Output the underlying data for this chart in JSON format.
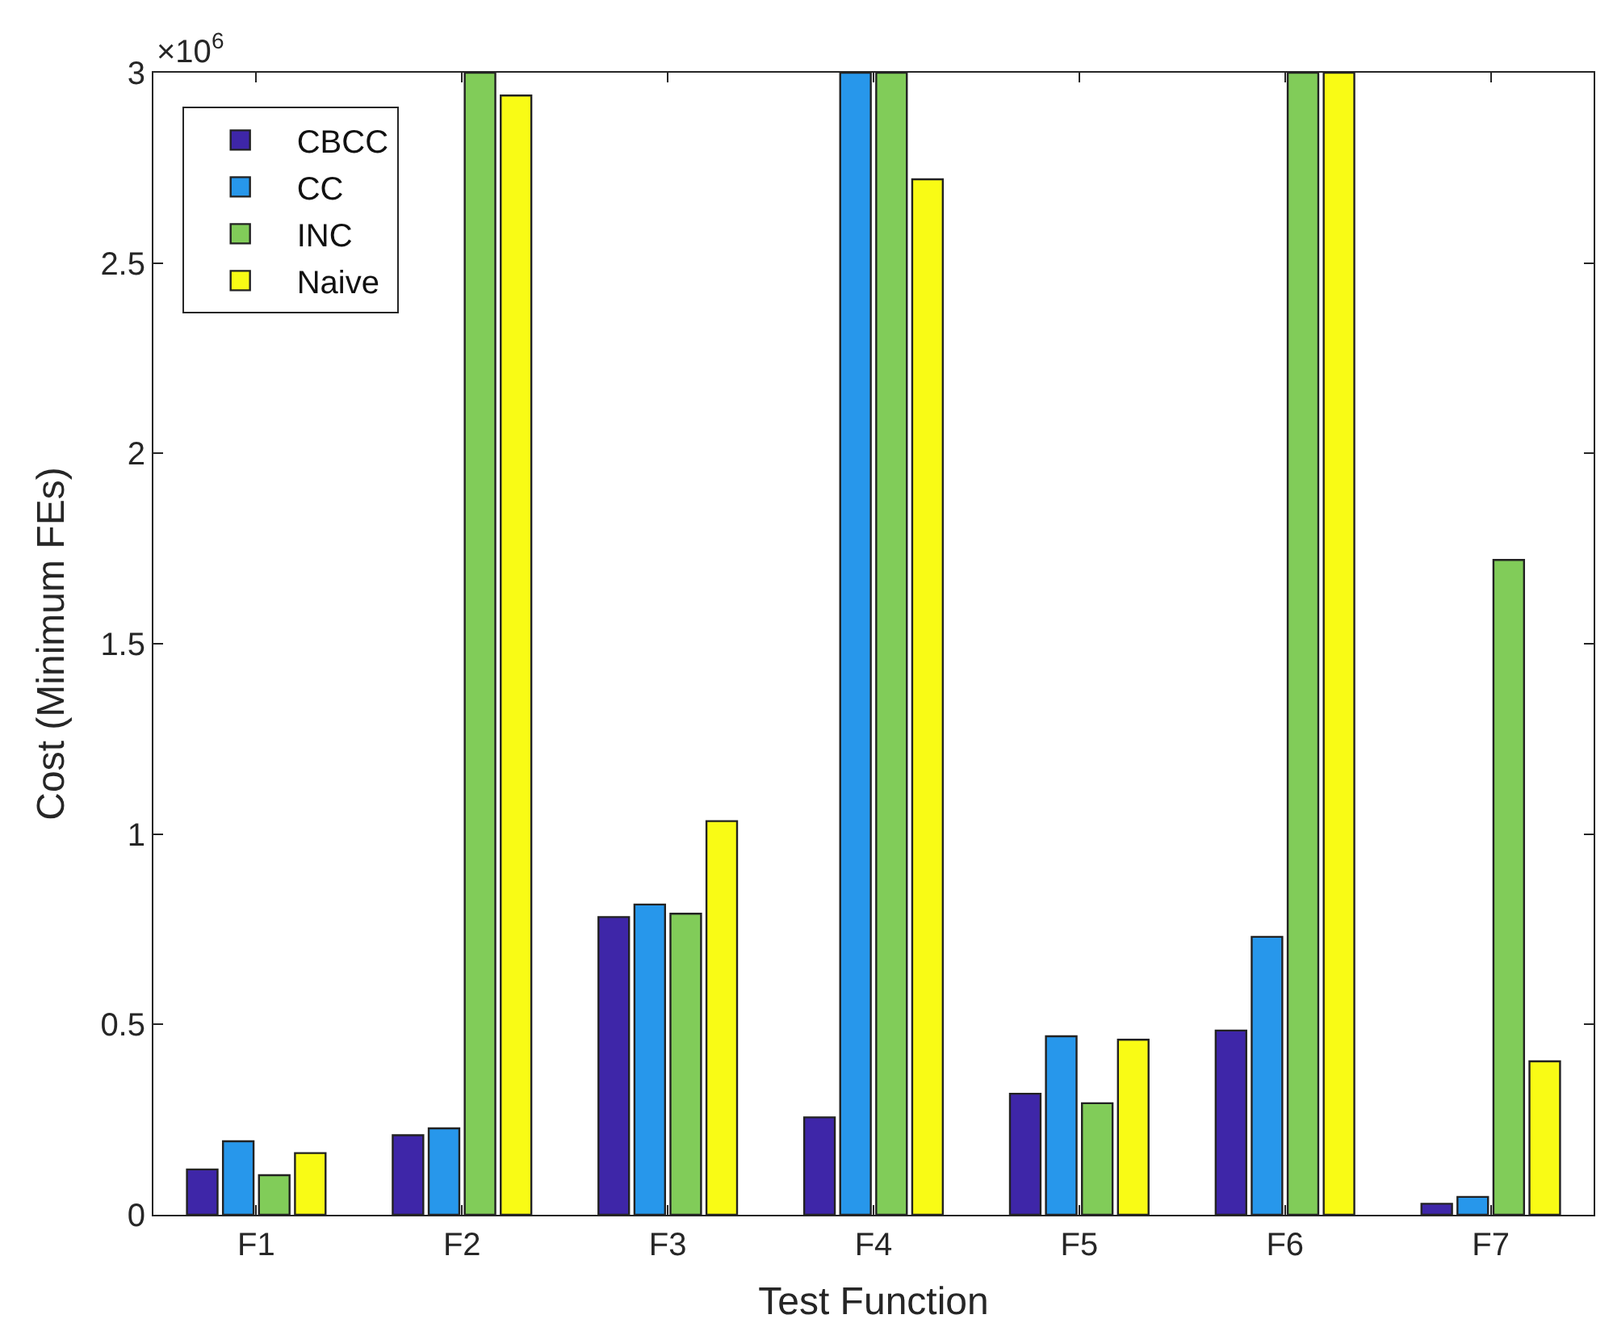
{
  "chart_data": {
    "type": "bar",
    "xlabel": "Test Function",
    "ylabel": "Cost (Minimum FEs)",
    "categories": [
      "F1",
      "F2",
      "F3",
      "F4",
      "F5",
      "F6",
      "F7"
    ],
    "series": [
      {
        "name": "CBCC",
        "color": "#3e26a8",
        "values": [
          0.119,
          0.209,
          0.782,
          0.256,
          0.318,
          0.484,
          0.029
        ]
      },
      {
        "name": "CC",
        "color": "#2797eb",
        "values": [
          0.193,
          0.227,
          0.815,
          3,
          0.469,
          0.73,
          0.047
        ]
      },
      {
        "name": "INC",
        "color": "#81cc59",
        "values": [
          0.104,
          3,
          0.791,
          3,
          0.293,
          3,
          1.72
        ]
      },
      {
        "name": "Naive",
        "color": "#f9fb15",
        "values": [
          0.162,
          2.94,
          1.034,
          2.72,
          0.46,
          3,
          0.403
        ]
      }
    ],
    "ylim": [
      0,
      3
    ],
    "yticks": [
      0,
      0.5,
      1,
      1.5,
      2,
      2.5,
      3
    ],
    "annotations": [
      "×10$^{6}$"
    ],
    "legend": "top left"
  }
}
